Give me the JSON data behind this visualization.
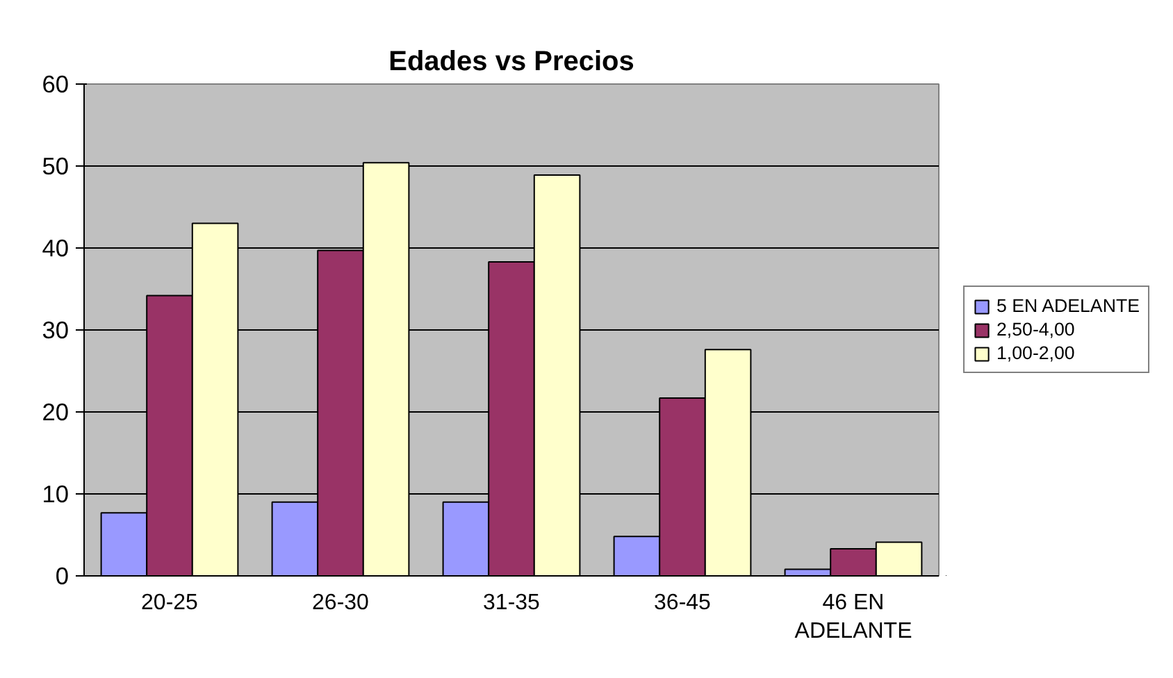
{
  "chart_data": {
    "type": "bar",
    "title": "Edades vs Precios",
    "categories": [
      "20-25",
      "26-30",
      "31-35",
      "36-45",
      "46 EN ADELANTE"
    ],
    "series": [
      {
        "name": "5 EN ADELANTE",
        "color": "#9999ff",
        "values": [
          7.7,
          9,
          9,
          4.8,
          0.8
        ]
      },
      {
        "name": "2,50-4,00",
        "color": "#993366",
        "values": [
          34.2,
          39.7,
          38.3,
          21.7,
          3.3
        ]
      },
      {
        "name": "1,00-2,00",
        "color": "#ffffcc",
        "values": [
          43,
          50.4,
          48.9,
          27.6,
          4.1
        ]
      }
    ],
    "ylim": [
      0,
      60
    ],
    "yticks": [
      0,
      10,
      20,
      30,
      40,
      50,
      60
    ],
    "grid": "y",
    "legend": "right"
  }
}
